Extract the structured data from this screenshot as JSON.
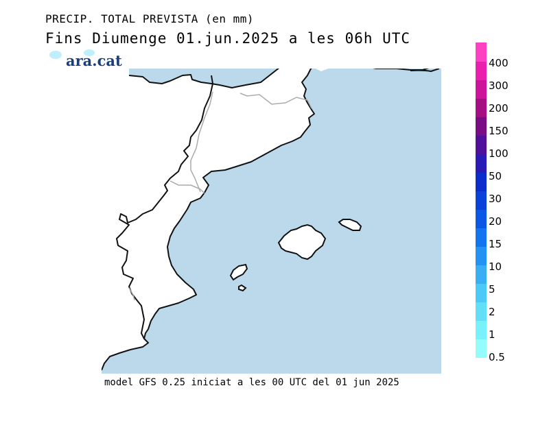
{
  "title": {
    "line1": "PRECIP. TOTAL PREVISTA (en mm)",
    "line2": "Fins Diumenge 01.jun.2025 a les 06h UTC"
  },
  "logo": {
    "text": "ara.cat"
  },
  "footer": "model GFS 0.25 iniciat a les 00 UTC del 01 jun 2025",
  "colors": {
    "sea": "#bcd9eb",
    "land": "#ffffff",
    "coast": "#111111",
    "border": "#aaaaaa"
  },
  "legend": {
    "colors": [
      "#95fcfc",
      "#79f1fa",
      "#62def8",
      "#4cc9f6",
      "#39aef4",
      "#2492f2",
      "#1274ee",
      "#0b57e6",
      "#0a41d8",
      "#0a2dcc",
      "#2b1bb6",
      "#50109c",
      "#7a0d86",
      "#a60f84",
      "#cc1399",
      "#e91fad",
      "#fe41c3"
    ],
    "labels": [
      "0.5",
      "1",
      "2",
      "5",
      "10",
      "15",
      "20",
      "30",
      "50",
      "100",
      "150",
      "200",
      "300",
      "400"
    ]
  }
}
